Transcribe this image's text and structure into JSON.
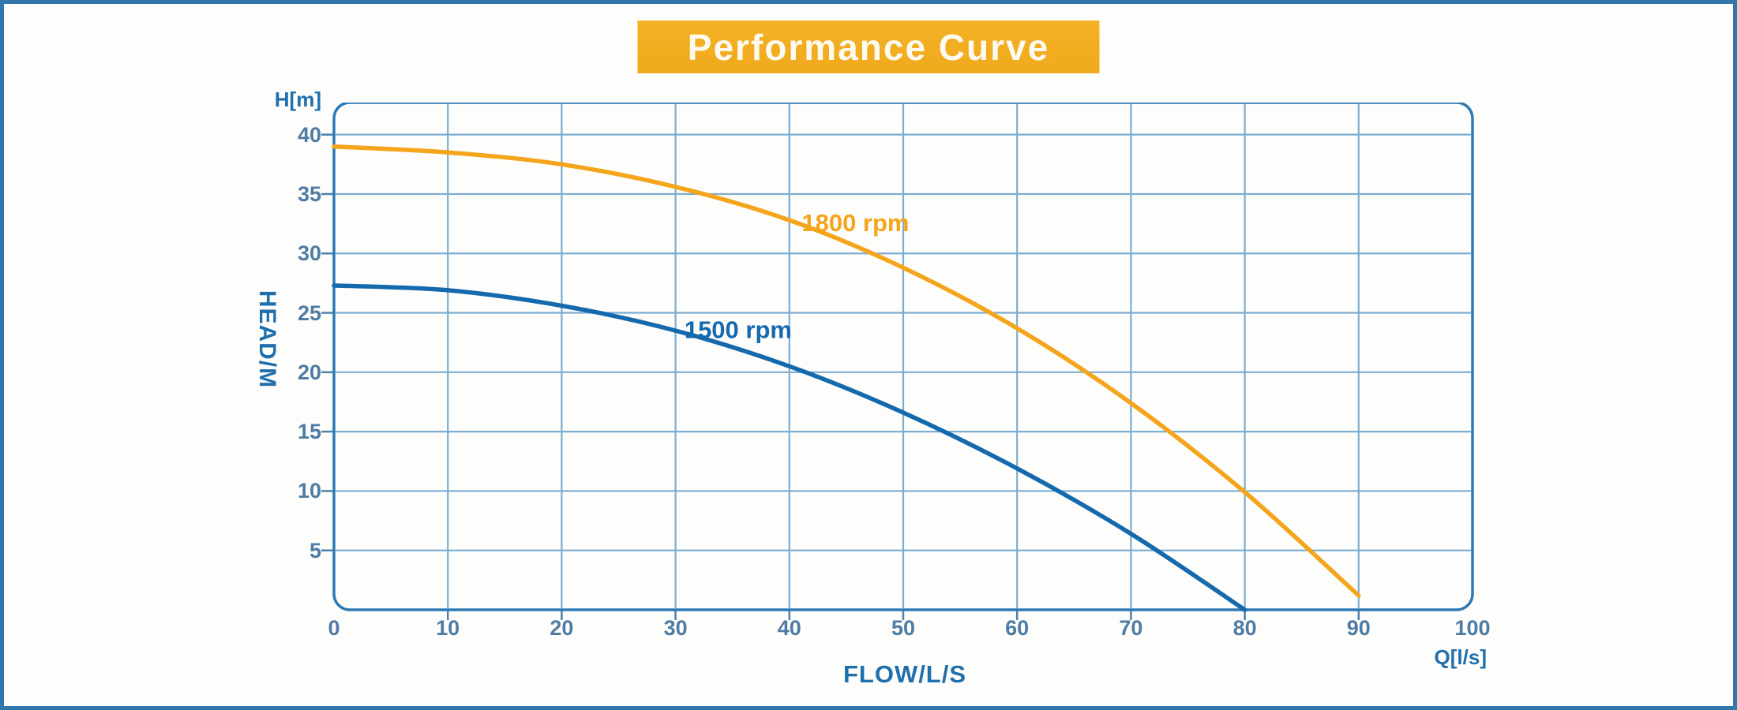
{
  "banner": {
    "title": "Performance Curve",
    "bg_color": "#f2ad20",
    "text_color": "#fdfaef"
  },
  "axis_labels": {
    "y_unit": "H[m]",
    "y_title": "HEAD/M",
    "x_title": "FLOW/L/S",
    "x_unit": "Q[l/s]"
  },
  "styles": {
    "outer_border_color": "#3277ac",
    "plot_border_color": "#2d79b4",
    "grid_color": "#7badd2",
    "tick_stub_color": "#4d82ad",
    "tick_label_color": "#4e7ca4",
    "axis_title_color": "#1f6fad"
  },
  "chart_data": {
    "type": "line",
    "title": "Performance Curve",
    "xlabel": "FLOW/L/S",
    "ylabel": "HEAD/M",
    "x_unit": "Q[l/s]",
    "y_unit": "H[m]",
    "xlim": [
      0,
      100
    ],
    "ylim": [
      0,
      42.7
    ],
    "x_ticks": [
      0,
      10,
      20,
      30,
      40,
      50,
      60,
      70,
      80,
      90,
      100
    ],
    "y_ticks": [
      5,
      10,
      15,
      20,
      25,
      30,
      35,
      40
    ],
    "grid": true,
    "legend_position": "inline-curve-labels",
    "series": [
      {
        "name": "1800 rpm",
        "color": "#f4a51c",
        "x": [
          0,
          10,
          20,
          30,
          40,
          50,
          60,
          70,
          80,
          90
        ],
        "values": [
          39.0,
          38.5,
          37.5,
          35.6,
          32.8,
          28.8,
          23.7,
          17.4,
          9.9,
          1.2
        ],
        "label_at": {
          "x": 45.8,
          "y": 32.6
        }
      },
      {
        "name": "1500 rpm",
        "color": "#1569ad",
        "x": [
          0,
          10,
          20,
          30,
          40,
          50,
          60,
          70,
          80
        ],
        "values": [
          27.3,
          26.9,
          25.6,
          23.5,
          20.5,
          16.6,
          11.9,
          6.4,
          0.0
        ],
        "label_at": {
          "x": 35.5,
          "y": 23.6
        }
      }
    ]
  }
}
